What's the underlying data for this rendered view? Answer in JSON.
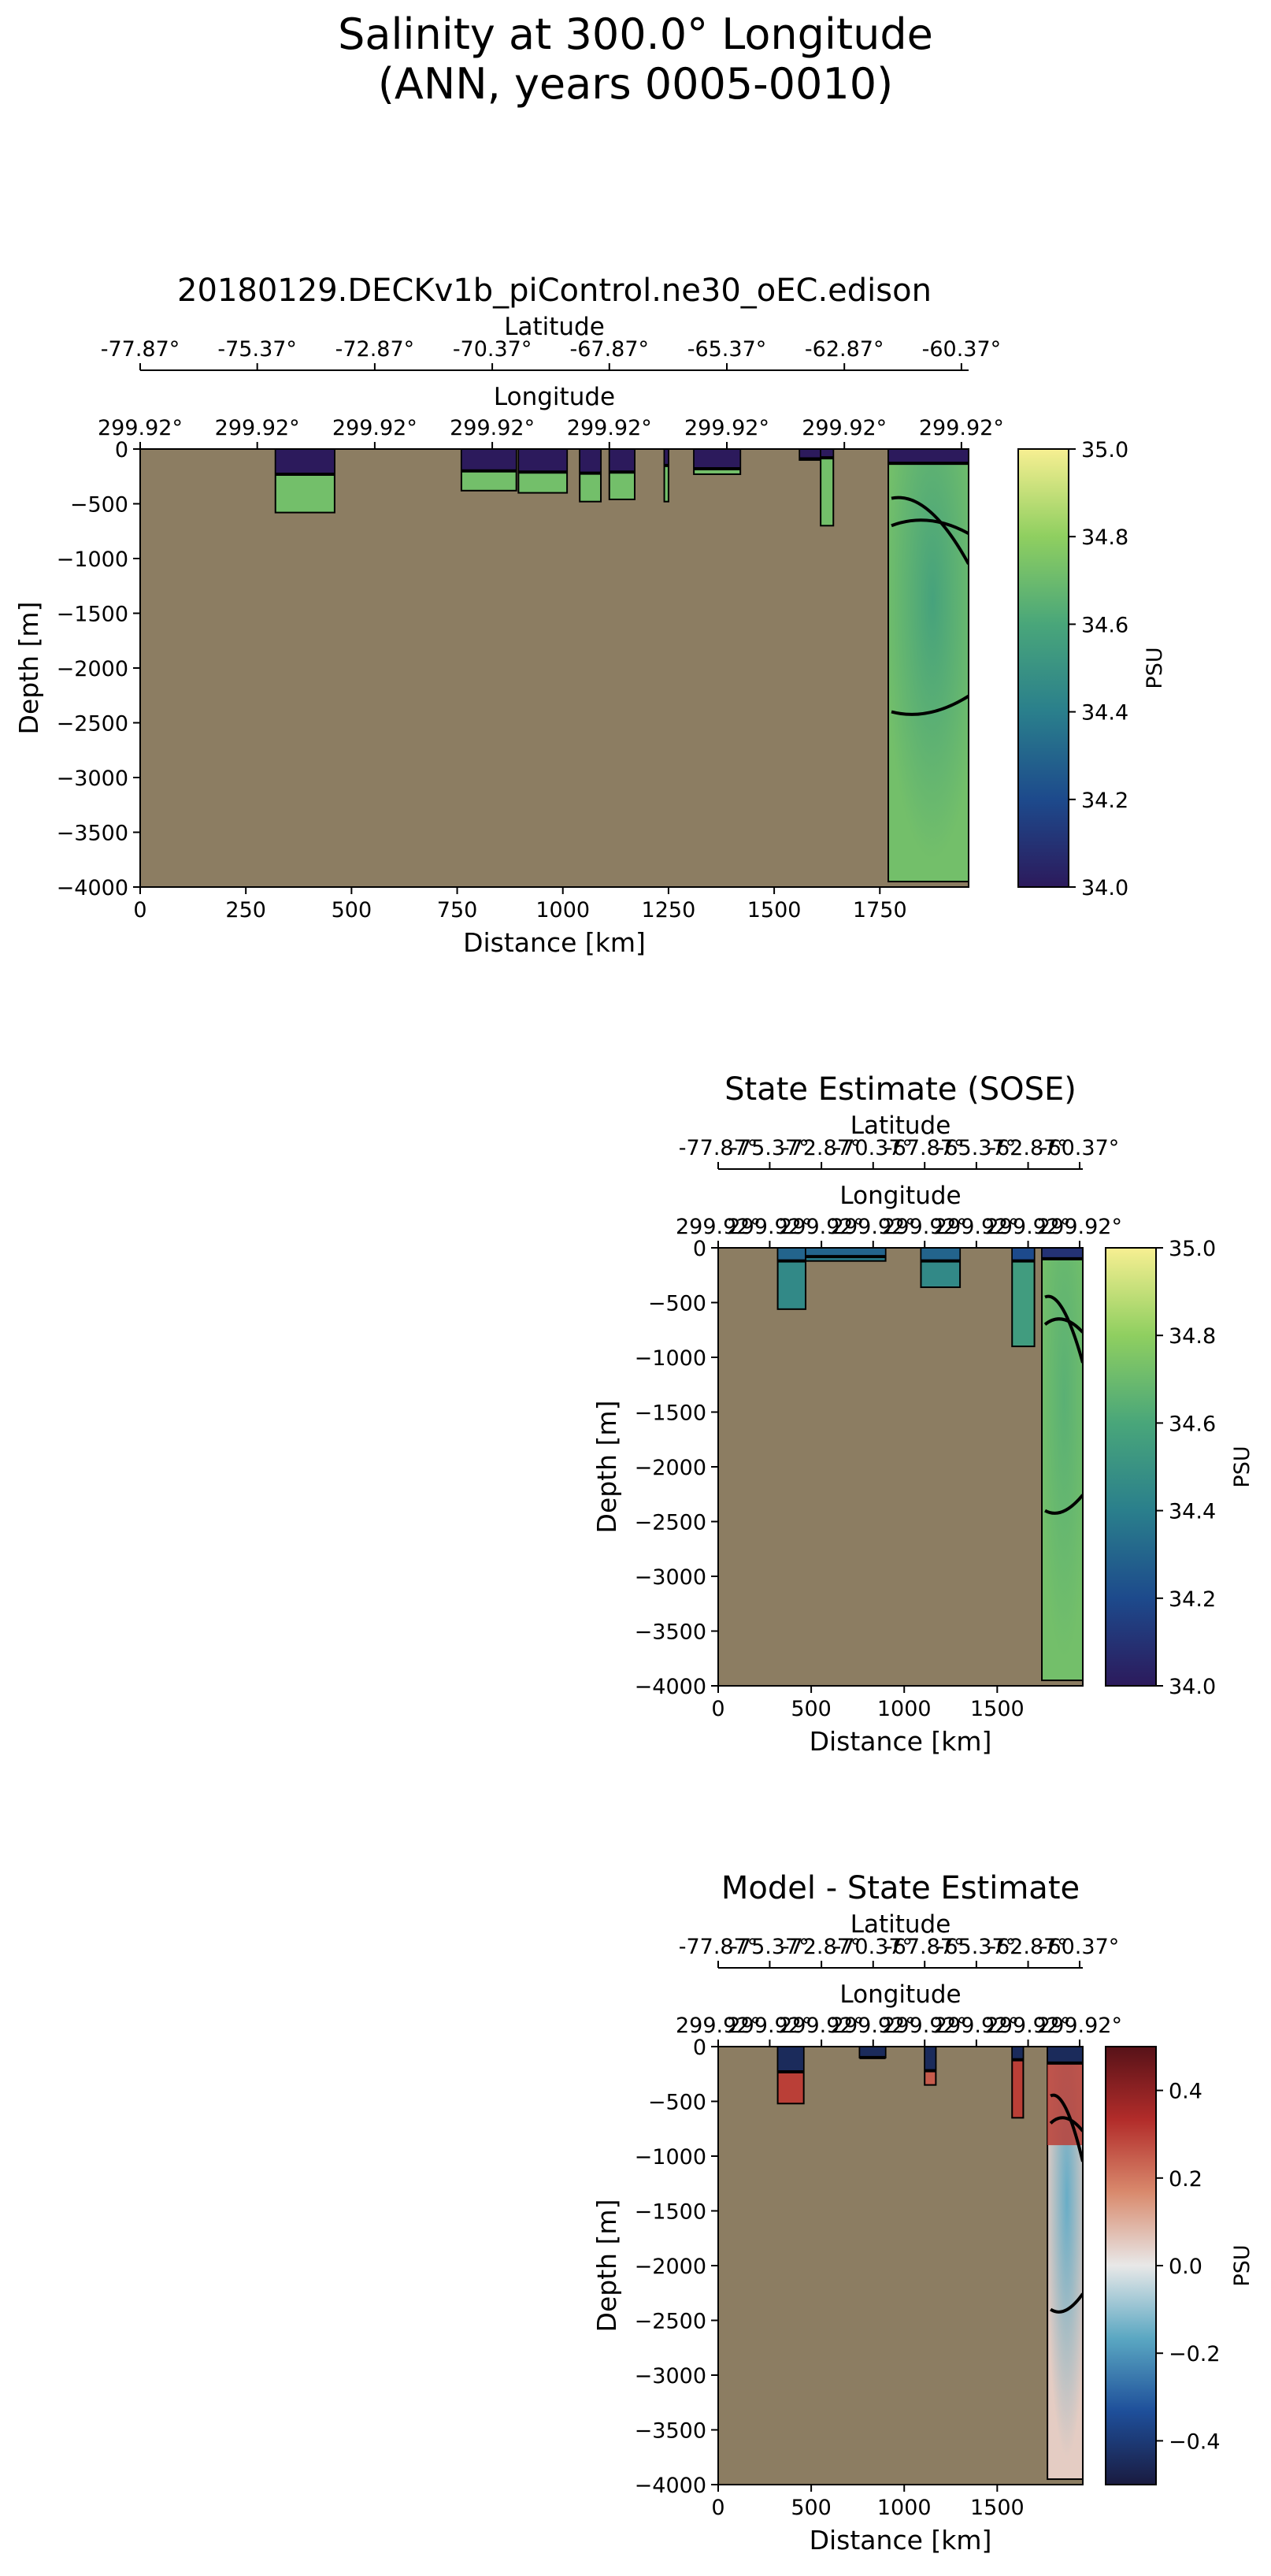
{
  "figure": {
    "title_line1": "Salinity at 300.0° Longitude",
    "title_line2": "(ANN, years 0005-0010)"
  },
  "colors": {
    "land": "#8c7d62",
    "psu_scale": [
      "#2c1a5c",
      "#1d4a8c",
      "#2a7f8c",
      "#49a67a",
      "#8fcf60",
      "#f7ef92"
    ],
    "diff_scale": [
      "#1a1b40",
      "#1e4f9a",
      "#5aa7c2",
      "#e8e8e8",
      "#d98a6d",
      "#b22c2a",
      "#571218"
    ],
    "contour": "#000000"
  },
  "chart_data": [
    {
      "type": "heatmap",
      "title": "20180129.DECKv1b_piControl.ne30_oEC.edison",
      "xlabel": "Distance [km]",
      "ylabel": "Depth [m]",
      "xlim": [
        0,
        1960
      ],
      "ylim": [
        -4000,
        0
      ],
      "x_ticks": [
        "0",
        "250",
        "500",
        "750",
        "1000",
        "1250",
        "1500",
        "1750"
      ],
      "x_tick_values": [
        0,
        250,
        500,
        750,
        1000,
        1250,
        1500,
        1750
      ],
      "y_ticks": [
        "0",
        "−500",
        "−1000",
        "−1500",
        "−2000",
        "−2500",
        "−3000",
        "−3500",
        "−4000"
      ],
      "y_tick_values": [
        0,
        -500,
        -1000,
        -1500,
        -2000,
        -2500,
        -3000,
        -3500,
        -4000
      ],
      "lat_axis_label": "Latitude",
      "lat_ticks": [
        "-77.87°",
        "-75.37°",
        "-72.87°",
        "-70.37°",
        "-67.87°",
        "-65.37°",
        "-62.87°",
        "-60.37°"
      ],
      "lat_tick_distances": [
        0,
        277,
        555,
        833,
        1110,
        1388,
        1666,
        1943
      ],
      "lon_axis_label": "Longitude",
      "lon_ticks": [
        "299.92°",
        "299.92°",
        "299.92°",
        "299.92°",
        "299.92°",
        "299.92°",
        "299.92°",
        "299.92°"
      ],
      "lon_tick_distances": [
        0,
        277,
        555,
        833,
        1110,
        1388,
        1666,
        1943
      ],
      "colorbar": {
        "label": "PSU",
        "range": [
          34.0,
          35.0
        ],
        "ticks": [
          "34.0",
          "34.2",
          "34.4",
          "34.6",
          "34.8",
          "35.0"
        ],
        "tick_values": [
          34.0,
          34.2,
          34.4,
          34.6,
          34.8,
          35.0
        ],
        "scale": "psu"
      },
      "ocean_regions": [
        {
          "x0": 320,
          "x1": 460,
          "depth": 580,
          "value": 34.72,
          "surface": 34.0,
          "surface_depth": 230
        },
        {
          "x0": 760,
          "x1": 890,
          "depth": 380,
          "value": 34.72,
          "surface": 34.0,
          "surface_depth": 200
        },
        {
          "x0": 895,
          "x1": 1010,
          "depth": 400,
          "value": 34.72,
          "surface": 34.0,
          "surface_depth": 210
        },
        {
          "x0": 1040,
          "x1": 1090,
          "depth": 480,
          "value": 34.72,
          "surface": 34.0,
          "surface_depth": 220
        },
        {
          "x0": 1110,
          "x1": 1170,
          "depth": 460,
          "value": 34.72,
          "surface": 34.0,
          "surface_depth": 210
        },
        {
          "x0": 1240,
          "x1": 1250,
          "depth": 480,
          "value": 34.72,
          "surface": 34.0,
          "surface_depth": 150
        },
        {
          "x0": 1310,
          "x1": 1420,
          "depth": 230,
          "value": 34.72,
          "surface": 34.0,
          "surface_depth": 180
        },
        {
          "x0": 1560,
          "x1": 1610,
          "depth": 100,
          "value": 34.72,
          "surface": 34.0,
          "surface_depth": 90
        },
        {
          "x0": 1610,
          "x1": 1640,
          "depth": 700,
          "value": 34.72,
          "surface": 34.0,
          "surface_depth": 80
        },
        {
          "x0": 1770,
          "x1": 1960,
          "depth": 3950,
          "value": 34.72,
          "surface": 34.0,
          "surface_depth": 130,
          "core": 34.58
        }
      ]
    },
    {
      "type": "heatmap",
      "title": "State Estimate (SOSE)",
      "xlabel": "Distance [km]",
      "ylabel": "Depth [m]",
      "xlim": [
        0,
        1960
      ],
      "ylim": [
        -4000,
        0
      ],
      "x_ticks": [
        "0",
        "500",
        "1000",
        "1500"
      ],
      "x_tick_values": [
        0,
        500,
        1000,
        1500
      ],
      "y_ticks": [
        "0",
        "−500",
        "−1000",
        "−1500",
        "−2000",
        "−2500",
        "−3000",
        "−3500",
        "−4000"
      ],
      "y_tick_values": [
        0,
        -500,
        -1000,
        -1500,
        -2000,
        -2500,
        -3000,
        -3500,
        -4000
      ],
      "lat_axis_label": "Latitude",
      "lat_ticks": [
        "-77.87°",
        "-75.37°",
        "-72.87°",
        "-70.37°",
        "-67.87°",
        "-65.37°",
        "-62.87°",
        "-60.37°"
      ],
      "lat_tick_distances": [
        0,
        277,
        555,
        833,
        1110,
        1388,
        1666,
        1943
      ],
      "lon_axis_label": "Longitude",
      "lon_ticks": [
        "299.92°",
        "299.92°",
        "299.92°",
        "299.92°",
        "299.92°",
        "299.92°",
        "299.92°",
        "299.92°"
      ],
      "lon_tick_distances": [
        0,
        277,
        555,
        833,
        1110,
        1388,
        1666,
        1943
      ],
      "colorbar": {
        "label": "PSU",
        "range": [
          34.0,
          35.0
        ],
        "ticks": [
          "34.0",
          "34.2",
          "34.4",
          "34.6",
          "34.8",
          "35.0"
        ],
        "tick_values": [
          34.0,
          34.2,
          34.4,
          34.6,
          34.8,
          35.0
        ],
        "scale": "psu"
      },
      "ocean_regions": [
        {
          "x0": 320,
          "x1": 470,
          "depth": 560,
          "value": 34.45,
          "surface": 34.3,
          "surface_depth": 120
        },
        {
          "x0": 470,
          "x1": 900,
          "depth": 120,
          "value": 34.4,
          "surface": 34.3,
          "surface_depth": 80
        },
        {
          "x0": 1090,
          "x1": 1300,
          "depth": 360,
          "value": 34.45,
          "surface": 34.3,
          "surface_depth": 120
        },
        {
          "x0": 1580,
          "x1": 1700,
          "depth": 900,
          "value": 34.55,
          "surface": 34.2,
          "surface_depth": 120
        },
        {
          "x0": 1740,
          "x1": 1960,
          "depth": 3950,
          "value": 34.72,
          "surface": 34.1,
          "surface_depth": 100,
          "core": 34.65
        }
      ]
    },
    {
      "type": "heatmap",
      "title": "Model - State Estimate",
      "xlabel": "Distance [km]",
      "ylabel": "Depth [m]",
      "xlim": [
        0,
        1960
      ],
      "ylim": [
        -4000,
        0
      ],
      "x_ticks": [
        "0",
        "500",
        "1000",
        "1500"
      ],
      "x_tick_values": [
        0,
        500,
        1000,
        1500
      ],
      "y_ticks": [
        "0",
        "−500",
        "−1000",
        "−1500",
        "−2000",
        "−2500",
        "−3000",
        "−3500",
        "−4000"
      ],
      "y_tick_values": [
        0,
        -500,
        -1000,
        -1500,
        -2000,
        -2500,
        -3000,
        -3500,
        -4000
      ],
      "lat_axis_label": "Latitude",
      "lat_ticks": [
        "-77.87°",
        "-75.37°",
        "-72.87°",
        "-70.37°",
        "-67.87°",
        "-65.37°",
        "-62.87°",
        "-60.37°"
      ],
      "lat_tick_distances": [
        0,
        277,
        555,
        833,
        1110,
        1388,
        1666,
        1943
      ],
      "lon_axis_label": "Longitude",
      "lon_ticks": [
        "299.92°",
        "299.92°",
        "299.92°",
        "299.92°",
        "299.92°",
        "299.92°",
        "299.92°",
        "299.92°"
      ],
      "lon_tick_distances": [
        0,
        277,
        555,
        833,
        1110,
        1388,
        1666,
        1943
      ],
      "colorbar": {
        "label": "PSU",
        "range": [
          -0.5,
          0.5
        ],
        "ticks": [
          "−0.4",
          "−0.2",
          "0.0",
          "0.2",
          "0.4"
        ],
        "tick_values": [
          -0.4,
          -0.2,
          0.0,
          0.2,
          0.4
        ],
        "scale": "diff"
      },
      "ocean_regions": [
        {
          "x0": 320,
          "x1": 460,
          "depth": 520,
          "value": 0.3,
          "surface": -0.45,
          "surface_depth": 230
        },
        {
          "x0": 760,
          "x1": 900,
          "depth": 100,
          "value": -0.4,
          "surface": -0.45,
          "surface_depth": 100
        },
        {
          "x0": 1110,
          "x1": 1170,
          "depth": 350,
          "value": 0.25,
          "surface": -0.45,
          "surface_depth": 220
        },
        {
          "x0": 1580,
          "x1": 1640,
          "depth": 650,
          "value": 0.3,
          "surface": -0.45,
          "surface_depth": 120
        },
        {
          "x0": 1770,
          "x1": 1960,
          "depth": 3950,
          "value": 0.05,
          "surface": -0.45,
          "surface_depth": 150,
          "core": -0.15,
          "upper": 0.3
        }
      ]
    }
  ]
}
